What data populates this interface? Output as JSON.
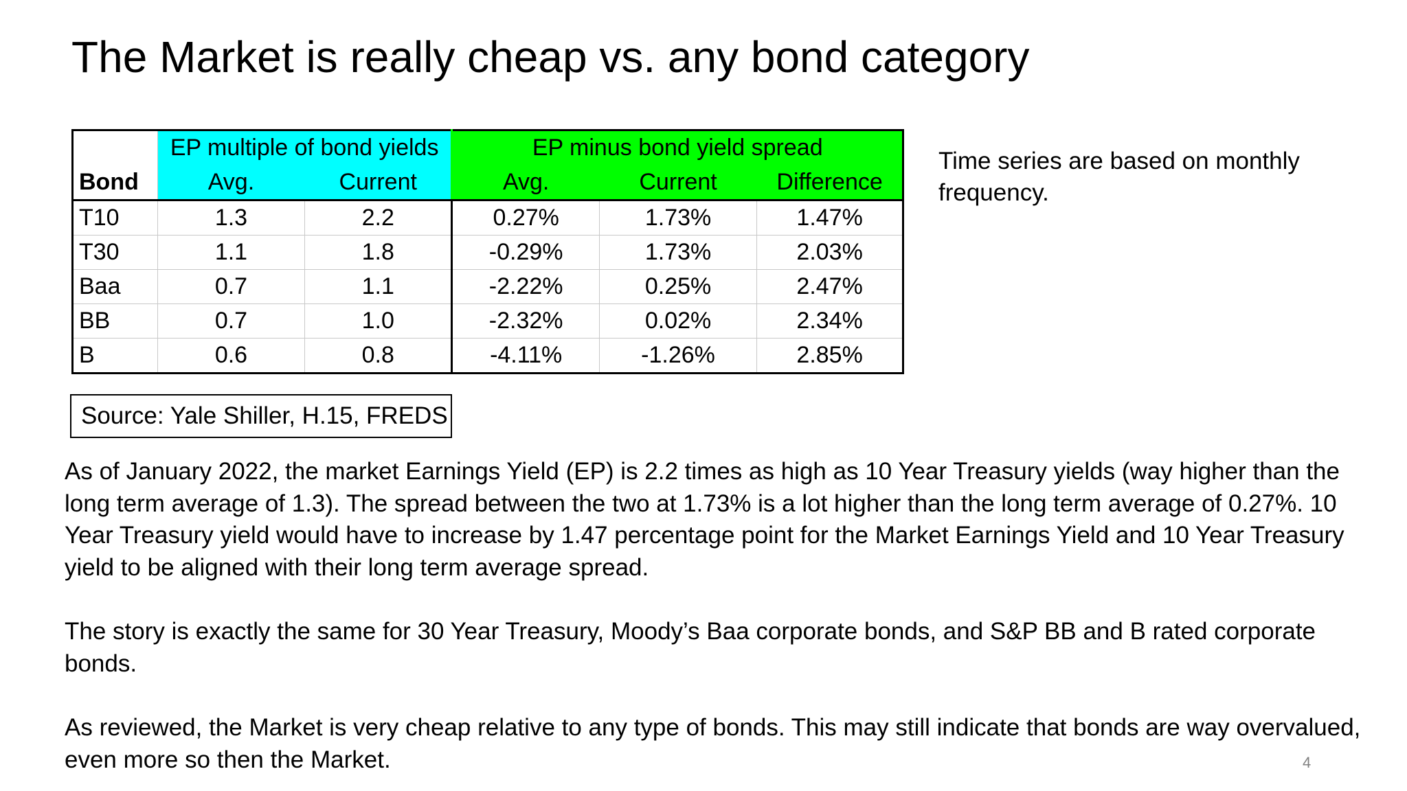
{
  "title": "The Market is really cheap vs. any bond category",
  "table": {
    "group_headers": {
      "multiple": "EP multiple of bond yields",
      "spread": "EP minus bond yield spread"
    },
    "columns": {
      "bond": "Bond",
      "avg1": "Avg.",
      "current1": "Current",
      "avg2": "Avg.",
      "current2": "Current",
      "difference": "Difference"
    },
    "rows": [
      {
        "bond": "T10",
        "avg": "1.3",
        "current": "2.2",
        "spread_avg": "0.27%",
        "spread_current": "1.73%",
        "difference": "1.47%"
      },
      {
        "bond": "T30",
        "avg": "1.1",
        "current": "1.8",
        "spread_avg": "-0.29%",
        "spread_current": "1.73%",
        "difference": "2.03%"
      },
      {
        "bond": "Baa",
        "avg": "0.7",
        "current": "1.1",
        "spread_avg": "-2.22%",
        "spread_current": "0.25%",
        "difference": "2.47%"
      },
      {
        "bond": "BB",
        "avg": "0.7",
        "current": "1.0",
        "spread_avg": "-2.32%",
        "spread_current": "0.02%",
        "difference": "2.34%"
      },
      {
        "bond": "B",
        "avg": "0.6",
        "current": "0.8",
        "spread_avg": "-4.11%",
        "spread_current": "-1.26%",
        "difference": "2.85%"
      }
    ],
    "colors": {
      "multiple_header": "#00ffff",
      "spread_header": "#00ff00"
    }
  },
  "side_note": "Time series are based on monthly frequency.",
  "source": "Source: Yale Shiller, H.15, FREDS",
  "paragraphs": [
    "As of January 2022, the market Earnings Yield (EP) is 2.2 times as high as 10 Year Treasury yields (way higher than the long term average of 1.3).  The spread between the two at 1.73% is a lot higher than the long term average of 0.27%.  10 Year Treasury yield would have to increase by 1.47 percentage point for the Market Earnings Yield and 10 Year Treasury yield to be aligned with their long term average spread.",
    "The story is exactly the same for 30 Year Treasury, Moody’s Baa corporate bonds, and S&P BB and B rated corporate bonds.",
    "As reviewed, the Market is very cheap relative to any type of bonds.  This may still indicate that bonds are way overvalued, even more so then the Market."
  ],
  "page_number": "4"
}
